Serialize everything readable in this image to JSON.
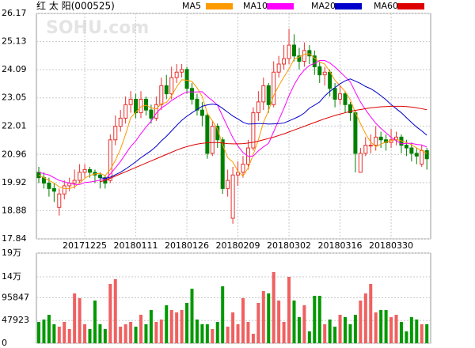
{
  "chart_data": [
    {
      "type": "candlestick",
      "title": "红 太 阳(000525)",
      "watermark": "SOHU.com",
      "up_color": "#e8312e",
      "down_color": "#008000",
      "grid": true,
      "ylim": [
        17.84,
        26.17
      ],
      "yticks": [
        17.84,
        18.88,
        19.92,
        20.96,
        22.01,
        23.05,
        24.09,
        25.13,
        26.17
      ],
      "categories": [
        null,
        null,
        null,
        null,
        null,
        null,
        null,
        null,
        null,
        "20171225",
        null,
        null,
        null,
        null,
        null,
        null,
        null,
        null,
        null,
        "20180111",
        null,
        null,
        null,
        null,
        null,
        null,
        null,
        null,
        null,
        "20180126",
        null,
        null,
        null,
        null,
        null,
        null,
        null,
        null,
        null,
        "20180209",
        null,
        null,
        null,
        null,
        null,
        null,
        null,
        null,
        null,
        "20180302",
        null,
        null,
        null,
        null,
        null,
        null,
        null,
        null,
        null,
        "20180316",
        null,
        null,
        null,
        null,
        null,
        null,
        null,
        null,
        null,
        "20180330",
        null,
        null,
        null,
        null,
        null,
        null,
        null
      ],
      "open": [
        20.3,
        20.1,
        19.9,
        19.7,
        19.0,
        19.5,
        19.8,
        19.9,
        20.0,
        20.3,
        20.4,
        20.3,
        20.2,
        20.1,
        20.0,
        21.5,
        22.0,
        22.3,
        22.8,
        23.0,
        22.5,
        23.0,
        22.6,
        22.3,
        22.8,
        23.5,
        23.2,
        23.8,
        24.0,
        24.1,
        23.4,
        23.0,
        22.6,
        22.4,
        21.0,
        22.0,
        21.5,
        19.7,
        18.6,
        20.2,
        20.3,
        20.6,
        21.2,
        22.5,
        22.9,
        23.5,
        22.8,
        24.0,
        24.3,
        24.5,
        25.0,
        24.6,
        24.4,
        24.8,
        24.6,
        24.2,
        23.9,
        24.0,
        23.4,
        23.0,
        23.2,
        22.8,
        22.5,
        20.3,
        21.0,
        21.3,
        21.3,
        21.6,
        21.5,
        21.4,
        21.5,
        21.6,
        21.3,
        21.2,
        21.0,
        20.6,
        21.1
      ],
      "high": [
        20.5,
        20.3,
        20.1,
        19.9,
        19.7,
        20.0,
        20.1,
        20.4,
        20.6,
        20.6,
        20.5,
        20.4,
        20.3,
        20.2,
        21.7,
        22.4,
        22.6,
        23.1,
        23.3,
        23.2,
        23.3,
        23.1,
        22.8,
        23.1,
        23.8,
        23.9,
        24.2,
        24.3,
        24.3,
        24.2,
        23.6,
        23.2,
        22.9,
        22.5,
        22.2,
        22.1,
        21.6,
        20.4,
        20.5,
        20.7,
        20.9,
        21.5,
        22.7,
        23.3,
        23.8,
        23.6,
        24.4,
        24.6,
        25.0,
        25.6,
        25.4,
        24.9,
        25.1,
        25.0,
        24.8,
        24.4,
        24.2,
        24.1,
        23.6,
        23.5,
        23.3,
        22.9,
        22.6,
        21.2,
        21.6,
        21.7,
        22.0,
        21.8,
        21.7,
        21.9,
        21.8,
        21.7,
        21.5,
        21.4,
        21.2,
        21.3,
        21.2
      ],
      "low": [
        19.9,
        19.7,
        19.4,
        19.2,
        18.7,
        19.3,
        19.6,
        19.7,
        19.9,
        20.1,
        20.1,
        19.9,
        19.7,
        19.7,
        19.9,
        21.3,
        21.8,
        22.1,
        22.5,
        22.3,
        22.3,
        22.4,
        22.1,
        22.2,
        22.6,
        23.0,
        23.0,
        23.6,
        23.8,
        23.2,
        22.8,
        22.4,
        22.0,
        20.8,
        20.9,
        21.2,
        19.5,
        19.4,
        18.4,
        19.8,
        20.1,
        20.4,
        21.1,
        22.2,
        22.6,
        22.5,
        22.7,
        23.8,
        24.1,
        24.3,
        24.4,
        24.1,
        24.2,
        24.3,
        23.9,
        23.6,
        23.5,
        23.1,
        22.7,
        22.8,
        22.5,
        22.2,
        20.3,
        20.3,
        20.9,
        21.0,
        21.1,
        21.2,
        21.1,
        21.2,
        21.3,
        21.0,
        20.9,
        20.7,
        20.6,
        20.5,
        20.4
      ],
      "close": [
        20.1,
        19.9,
        19.7,
        19.6,
        19.5,
        19.8,
        19.9,
        20.0,
        20.3,
        20.4,
        20.3,
        20.2,
        20.1,
        19.9,
        21.5,
        22.0,
        22.3,
        22.8,
        23.0,
        22.5,
        23.0,
        22.6,
        22.3,
        22.8,
        23.5,
        23.2,
        23.8,
        24.0,
        24.1,
        23.4,
        23.0,
        22.6,
        22.4,
        21.0,
        22.0,
        21.5,
        19.7,
        20.0,
        20.2,
        20.3,
        20.6,
        21.2,
        22.5,
        22.9,
        23.5,
        22.8,
        24.0,
        24.3,
        24.5,
        25.0,
        24.6,
        24.4,
        24.8,
        24.6,
        24.2,
        23.9,
        24.0,
        23.4,
        23.0,
        23.2,
        22.8,
        22.5,
        21.0,
        21.0,
        21.3,
        21.3,
        21.6,
        21.5,
        21.4,
        21.5,
        21.6,
        21.3,
        21.2,
        21.0,
        20.9,
        21.1,
        20.8
      ],
      "series": [
        {
          "name": "MA5",
          "color": "#ff9900",
          "values": [
            20.2,
            20.1,
            20.0,
            19.9,
            19.76,
            19.7,
            19.7,
            19.76,
            19.9,
            20.08,
            20.18,
            20.24,
            20.26,
            20.18,
            20.4,
            20.74,
            21.16,
            21.7,
            22.32,
            22.52,
            22.72,
            22.78,
            22.68,
            22.64,
            22.84,
            22.88,
            23.12,
            23.46,
            23.72,
            23.7,
            23.66,
            23.42,
            23.1,
            22.48,
            22.2,
            21.9,
            21.32,
            20.84,
            20.68,
            20.34,
            20.16,
            20.46,
            20.96,
            21.5,
            22.14,
            22.58,
            23.14,
            23.5,
            23.82,
            24.12,
            24.48,
            24.56,
            24.66,
            24.68,
            24.52,
            24.38,
            24.3,
            24.02,
            23.7,
            23.5,
            23.28,
            22.98,
            22.5,
            22.1,
            21.72,
            21.42,
            21.24,
            21.34,
            21.42,
            21.46,
            21.52,
            21.46,
            21.4,
            21.32,
            21.2,
            21.1,
            21.0
          ]
        },
        {
          "name": "MA10",
          "color": "#ff00ff",
          "values": [
            20.3,
            20.25,
            20.2,
            20.1,
            20.0,
            19.95,
            19.9,
            19.85,
            19.85,
            19.92,
            19.94,
            19.97,
            20.01,
            20.04,
            20.24,
            20.46,
            20.7,
            20.98,
            21.25,
            21.46,
            21.73,
            21.97,
            22.19,
            22.48,
            22.68,
            22.8,
            22.95,
            23.07,
            23.18,
            23.27,
            23.27,
            23.27,
            23.28,
            23.1,
            22.95,
            22.78,
            22.37,
            21.97,
            21.58,
            21.27,
            21.03,
            20.89,
            20.9,
            21.09,
            21.24,
            21.37,
            21.8,
            22.23,
            22.66,
            23.13,
            23.53,
            23.85,
            24.08,
            24.25,
            24.32,
            24.43,
            24.43,
            24.34,
            24.19,
            24.01,
            23.83,
            23.64,
            23.26,
            22.9,
            22.61,
            22.35,
            22.11,
            21.92,
            21.76,
            21.59,
            21.47,
            21.35,
            21.37,
            21.37,
            21.33,
            21.31,
            21.23
          ]
        },
        {
          "name": "MA20",
          "color": "#0000cc",
          "values": [
            null,
            null,
            null,
            null,
            null,
            null,
            null,
            null,
            null,
            null,
            null,
            null,
            20.1,
            20.07,
            20.12,
            20.21,
            20.3,
            20.42,
            20.55,
            20.69,
            20.84,
            20.97,
            21.1,
            21.26,
            21.46,
            21.63,
            21.83,
            22.03,
            22.22,
            22.37,
            22.5,
            22.62,
            22.74,
            22.79,
            22.82,
            22.79,
            22.66,
            22.52,
            22.38,
            22.27,
            22.15,
            22.08,
            22.09,
            22.1,
            22.1,
            22.08,
            22.09,
            22.1,
            22.12,
            22.2,
            22.28,
            22.37,
            22.49,
            22.67,
            22.78,
            22.9,
            23.12,
            23.29,
            23.43,
            23.57,
            23.68,
            23.75,
            23.67,
            23.58,
            23.47,
            23.39,
            23.27,
            23.13,
            22.98,
            22.8,
            22.65,
            22.5,
            22.32,
            22.14,
            21.97,
            21.83,
            21.67
          ]
        },
        {
          "name": "MA60",
          "color": "#dd0000",
          "values": [
            null,
            null,
            null,
            null,
            null,
            null,
            null,
            null,
            null,
            null,
            null,
            null,
            19.95,
            20.0,
            20.08,
            20.16,
            20.24,
            20.32,
            20.4,
            20.48,
            20.56,
            20.64,
            20.72,
            20.8,
            20.88,
            20.96,
            21.04,
            21.12,
            21.19,
            21.25,
            21.3,
            21.34,
            21.37,
            21.39,
            21.4,
            21.4,
            21.38,
            21.36,
            21.35,
            21.35,
            21.36,
            21.38,
            21.41,
            21.45,
            21.5,
            21.55,
            21.6,
            21.66,
            21.72,
            21.79,
            21.86,
            21.93,
            22.0,
            22.07,
            22.14,
            22.21,
            22.28,
            22.34,
            22.4,
            22.45,
            22.5,
            22.55,
            22.59,
            22.62,
            22.65,
            22.68,
            22.7,
            22.72,
            22.73,
            22.74,
            22.74,
            22.74,
            22.73,
            22.71,
            22.68,
            22.65,
            22.61
          ]
        }
      ]
    },
    {
      "type": "bar",
      "up_color": "#f06060",
      "down_color": "#009900",
      "grid": true,
      "ylim": [
        0,
        190000
      ],
      "yticks": [
        0,
        47923,
        95847,
        {
          "value": 140000,
          "label": "14万"
        },
        {
          "value": 190000,
          "label": "19万"
        }
      ],
      "values": [
        45000,
        50000,
        60000,
        40000,
        35000,
        45000,
        30000,
        105000,
        95000,
        40000,
        30000,
        90000,
        40000,
        30000,
        125000,
        135000,
        35000,
        40000,
        45000,
        35000,
        60000,
        40000,
        70000,
        45000,
        50000,
        80000,
        70000,
        65000,
        70000,
        85000,
        115000,
        50000,
        40000,
        40000,
        30000,
        45000,
        120000,
        35000,
        65000,
        40000,
        95000,
        45000,
        20000,
        85000,
        110000,
        105000,
        150000,
        90000,
        45000,
        140000,
        90000,
        55000,
        80000,
        25000,
        100000,
        100000,
        40000,
        50000,
        35000,
        60000,
        55000,
        40000,
        60000,
        90000,
        105000,
        125000,
        65000,
        70000,
        70000,
        55000,
        60000,
        45000,
        25000,
        55000,
        50000,
        40000,
        40000
      ]
    }
  ]
}
